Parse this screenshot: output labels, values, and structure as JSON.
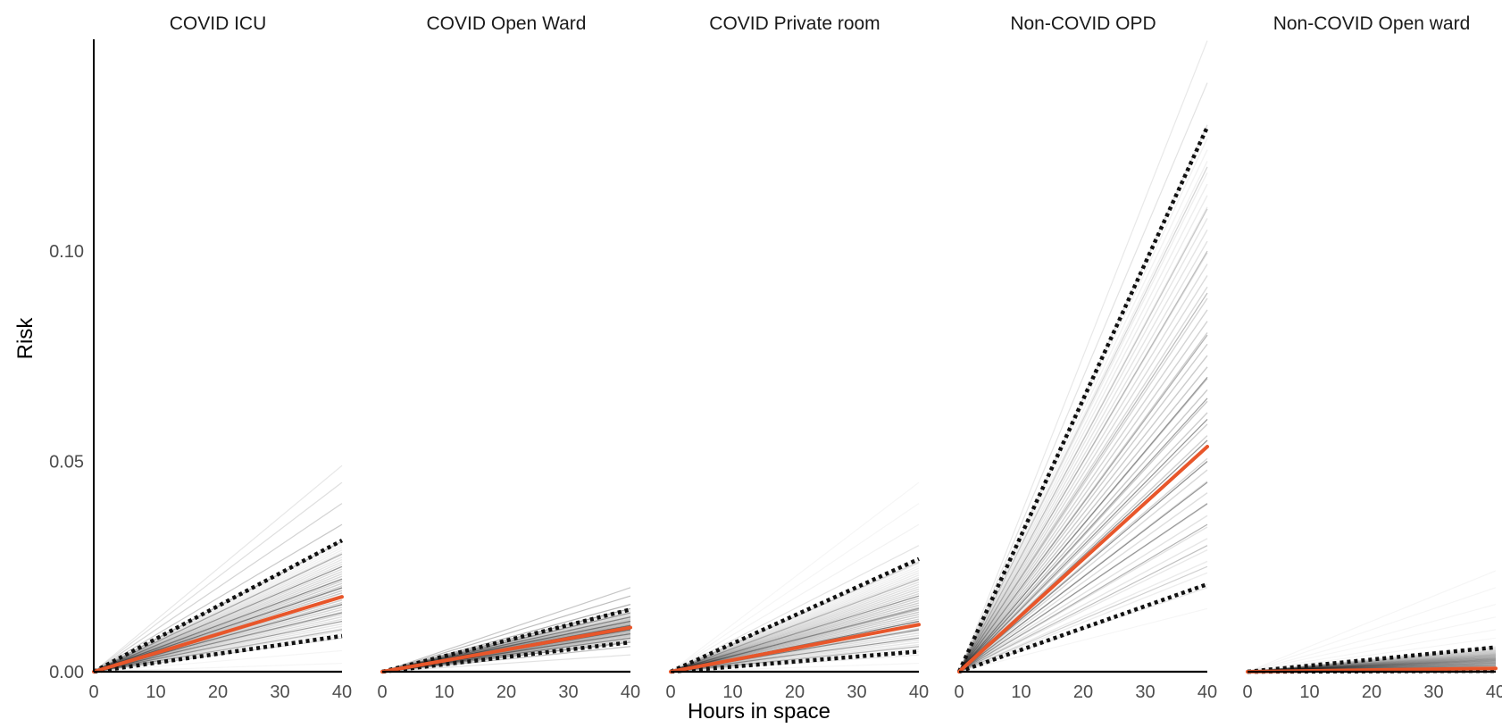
{
  "chart_data": {
    "type": "line",
    "xlabel": "Hours in space",
    "ylabel": "Risk",
    "xlim": [
      0,
      40
    ],
    "ylim": [
      0,
      0.15
    ],
    "x_ticks": [
      0,
      10,
      20,
      30,
      40
    ],
    "x_tick_labels": [
      "0",
      "10",
      "20",
      "30",
      "40"
    ],
    "y_ticks": [
      0.0,
      0.05,
      0.1
    ],
    "y_tick_labels": [
      "0.00",
      "0.05",
      "0.10"
    ],
    "grid": false,
    "legend": "none",
    "colors": {
      "median": "#e8562a",
      "interval": "#111111",
      "simulations": "#000000",
      "axis": "#000000"
    },
    "panels": [
      {
        "title": "COVID ICU",
        "x": [
          0,
          40
        ],
        "median": [
          0,
          0.0178
        ],
        "lower": [
          0,
          0.0085
        ],
        "upper": [
          0,
          0.0312
        ],
        "sim_endpoints": [
          0.002,
          0.005,
          0.008,
          0.01,
          0.012,
          0.014,
          0.016,
          0.018,
          0.02,
          0.022,
          0.025,
          0.028,
          0.031,
          0.035,
          0.04,
          0.045,
          0.049
        ]
      },
      {
        "title": "COVID Open Ward",
        "x": [
          0,
          40
        ],
        "median": [
          0,
          0.0105
        ],
        "lower": [
          0,
          0.007
        ],
        "upper": [
          0,
          0.0148
        ],
        "sim_endpoints": [
          0.004,
          0.006,
          0.007,
          0.008,
          0.009,
          0.01,
          0.011,
          0.012,
          0.013,
          0.014,
          0.015,
          0.016,
          0.018,
          0.02
        ]
      },
      {
        "title": "COVID Private room",
        "x": [
          0,
          40
        ],
        "median": [
          0,
          0.0112
        ],
        "lower": [
          0,
          0.0048
        ],
        "upper": [
          0,
          0.0268
        ],
        "sim_endpoints": [
          0.002,
          0.004,
          0.006,
          0.008,
          0.01,
          0.012,
          0.015,
          0.018,
          0.022,
          0.026,
          0.03,
          0.035,
          0.04,
          0.045
        ]
      },
      {
        "title": "Non-COVID OPD",
        "x": [
          0,
          40
        ],
        "median": [
          0,
          0.0535
        ],
        "lower": [
          0,
          0.0208
        ],
        "upper": [
          0,
          0.1295
        ],
        "sim_endpoints": [
          0.015,
          0.02,
          0.025,
          0.03,
          0.035,
          0.04,
          0.045,
          0.05,
          0.055,
          0.06,
          0.065,
          0.07,
          0.08,
          0.09,
          0.1,
          0.11,
          0.12,
          0.13,
          0.14,
          0.15
        ]
      },
      {
        "title": "Non-COVID Open ward",
        "x": [
          0,
          40
        ],
        "median": [
          0,
          0.0008
        ],
        "lower": [
          0,
          0.0002
        ],
        "upper": [
          0,
          0.0058
        ],
        "sim_endpoints": [
          0.0002,
          0.0005,
          0.001,
          0.0015,
          0.002,
          0.003,
          0.004,
          0.005,
          0.006,
          0.008,
          0.01,
          0.013,
          0.016,
          0.02,
          0.024
        ]
      }
    ]
  }
}
